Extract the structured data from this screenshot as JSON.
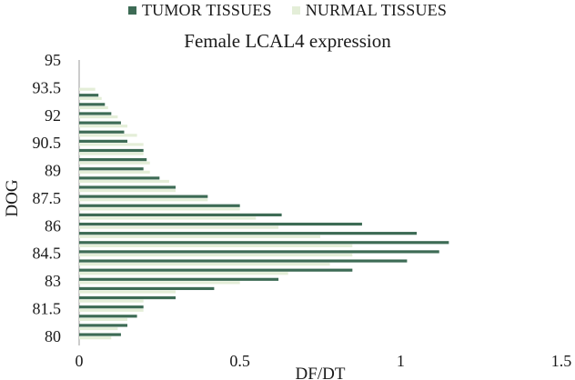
{
  "chart_data": {
    "type": "bar",
    "orientation": "horizontal",
    "title": "Female LCAL4 expression",
    "xlabel": "DF/DT",
    "ylabel": "DOG",
    "xlim": [
      0,
      1.5
    ],
    "xticks": [
      "0",
      "0.5",
      "1",
      "1.5"
    ],
    "ylim": [
      79.5,
      95
    ],
    "yticks": [
      "80",
      "81.5",
      "83",
      "84.5",
      "86",
      "87.5",
      "89",
      "90.5",
      "92",
      "93.5",
      "95"
    ],
    "categories": [
      80,
      80.5,
      81,
      81.5,
      82,
      82.5,
      83,
      83.5,
      84,
      84.5,
      85,
      85.5,
      86,
      86.5,
      87,
      87.5,
      88,
      88.5,
      89,
      89.5,
      90,
      90.5,
      91,
      91.5,
      92,
      92.5,
      93,
      93.5
    ],
    "series": [
      {
        "name": "TUMOR TISSUES",
        "color": "#3d6b55",
        "values": [
          0.13,
          0.15,
          0.18,
          0.2,
          0.3,
          0.42,
          0.62,
          0.85,
          1.02,
          1.12,
          1.15,
          1.05,
          0.88,
          0.63,
          0.5,
          0.4,
          0.3,
          0.25,
          0.2,
          0.21,
          0.2,
          0.15,
          0.14,
          0.13,
          0.1,
          0.08,
          0.06,
          0.0
        ]
      },
      {
        "name": "NURMAL TISSUES",
        "color": "#e4eed8",
        "values": [
          0.1,
          0.12,
          0.15,
          0.2,
          0.2,
          0.3,
          0.5,
          0.65,
          0.78,
          0.85,
          0.85,
          0.75,
          0.62,
          0.55,
          0.5,
          0.4,
          0.3,
          0.28,
          0.22,
          0.22,
          0.2,
          0.2,
          0.18,
          0.15,
          0.12,
          0.09,
          0.07,
          0.05
        ]
      }
    ],
    "legend_position": "top",
    "grid": false
  }
}
